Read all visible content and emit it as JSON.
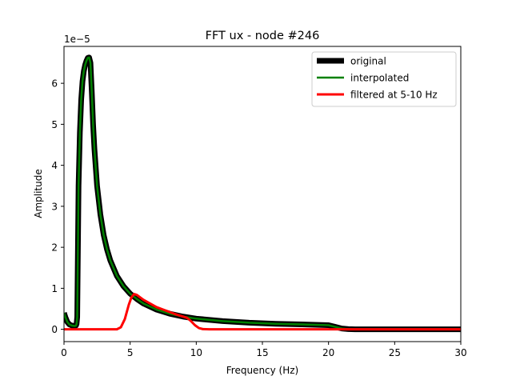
{
  "chart_data": {
    "type": "line",
    "title": "FFT ux - node #246",
    "xlabel": "Frequency (Hz)",
    "ylabel": "Amplitude",
    "y_scale_label": "1e−5",
    "xlim": [
      0,
      30
    ],
    "ylim": [
      -3e-06,
      6.9e-05
    ],
    "xticks": [
      "0",
      "5",
      "10",
      "15",
      "20",
      "25",
      "30"
    ],
    "yticks": [
      "0",
      "1",
      "2",
      "3",
      "4",
      "5",
      "6"
    ],
    "grid": false,
    "legend_position": "top-right",
    "series": [
      {
        "name": "original",
        "color": "#000000",
        "x": [
          0,
          0.1,
          0.25,
          0.4,
          0.6,
          0.8,
          0.9,
          0.95,
          1.0,
          1.1,
          1.2,
          1.3,
          1.4,
          1.5,
          1.6,
          1.7,
          1.8,
          1.9,
          2.0,
          2.1,
          2.2,
          2.3,
          2.5,
          2.75,
          3.0,
          3.25,
          3.5,
          4.0,
          4.5,
          5.0,
          5.5,
          6.0,
          7.0,
          8.0,
          9.0,
          10.0,
          12.0,
          14.0,
          16.0,
          18.0,
          20.0,
          20.5,
          21.0,
          21.5,
          22.0,
          25.0,
          30.0
        ],
        "y": [
          4e-06,
          3e-06,
          1.8e-06,
          1.2e-06,
          9e-07,
          8e-07,
          9e-07,
          1.3e-06,
          3e-06,
          3.5e-05,
          4.8e-05,
          5.6e-05,
          6.05e-05,
          6.3e-05,
          6.45e-05,
          6.55e-05,
          6.62e-05,
          6.63e-05,
          6.5e-05,
          5.8e-05,
          5e-05,
          4.4e-05,
          3.5e-05,
          2.8e-05,
          2.3e-05,
          1.95e-05,
          1.68e-05,
          1.3e-05,
          1.05e-05,
          8.7e-06,
          7.4e-06,
          6.3e-06,
          4.8e-06,
          3.8e-06,
          3.1e-06,
          2.6e-06,
          2e-06,
          1.6e-06,
          1.35e-06,
          1.2e-06,
          1e-06,
          6e-07,
          2e-07,
          5e-08,
          0,
          0,
          0
        ]
      },
      {
        "name": "interpolated",
        "color": "#008000",
        "x": [
          0,
          0.1,
          0.25,
          0.4,
          0.6,
          0.8,
          0.9,
          0.95,
          1.0,
          1.1,
          1.2,
          1.3,
          1.4,
          1.5,
          1.6,
          1.7,
          1.8,
          1.9,
          2.0,
          2.1,
          2.2,
          2.3,
          2.5,
          2.75,
          3.0,
          3.25,
          3.5,
          4.0,
          4.5,
          5.0,
          5.5,
          6.0,
          7.0,
          8.0,
          9.0,
          10.0,
          12.0,
          14.0,
          16.0,
          18.0,
          20.0,
          20.5,
          21.0,
          21.5,
          22.0,
          25.0,
          30.0
        ],
        "y": [
          4e-06,
          3e-06,
          1.8e-06,
          1.2e-06,
          9e-07,
          8e-07,
          9e-07,
          1.3e-06,
          3e-06,
          3.5e-05,
          4.8e-05,
          5.6e-05,
          6.05e-05,
          6.3e-05,
          6.45e-05,
          6.55e-05,
          6.62e-05,
          6.63e-05,
          6.5e-05,
          5.8e-05,
          5e-05,
          4.4e-05,
          3.5e-05,
          2.8e-05,
          2.3e-05,
          1.95e-05,
          1.68e-05,
          1.3e-05,
          1.05e-05,
          8.7e-06,
          7.4e-06,
          6.3e-06,
          4.8e-06,
          3.8e-06,
          3.1e-06,
          2.6e-06,
          2e-06,
          1.6e-06,
          1.35e-06,
          1.2e-06,
          1e-06,
          6e-07,
          2e-07,
          5e-08,
          0,
          0,
          0
        ]
      },
      {
        "name": "filtered at 5-10 Hz",
        "color": "#ff0000",
        "x": [
          0,
          4.0,
          4.3,
          4.6,
          4.9,
          5.1,
          5.3,
          5.5,
          6.0,
          6.5,
          7.0,
          7.5,
          8.0,
          8.5,
          9.0,
          9.3,
          9.6,
          9.9,
          10.2,
          10.5,
          11.0,
          30.0
        ],
        "y": [
          0,
          0,
          5e-07,
          2.5e-06,
          6e-06,
          7.8e-06,
          8.6e-06,
          8.4e-06,
          7.2e-06,
          6.3e-06,
          5.4e-06,
          4.8e-06,
          4.2e-06,
          3.6e-06,
          3.1e-06,
          2.8e-06,
          2e-06,
          1e-06,
          3e-07,
          5e-08,
          0,
          0
        ]
      }
    ]
  }
}
